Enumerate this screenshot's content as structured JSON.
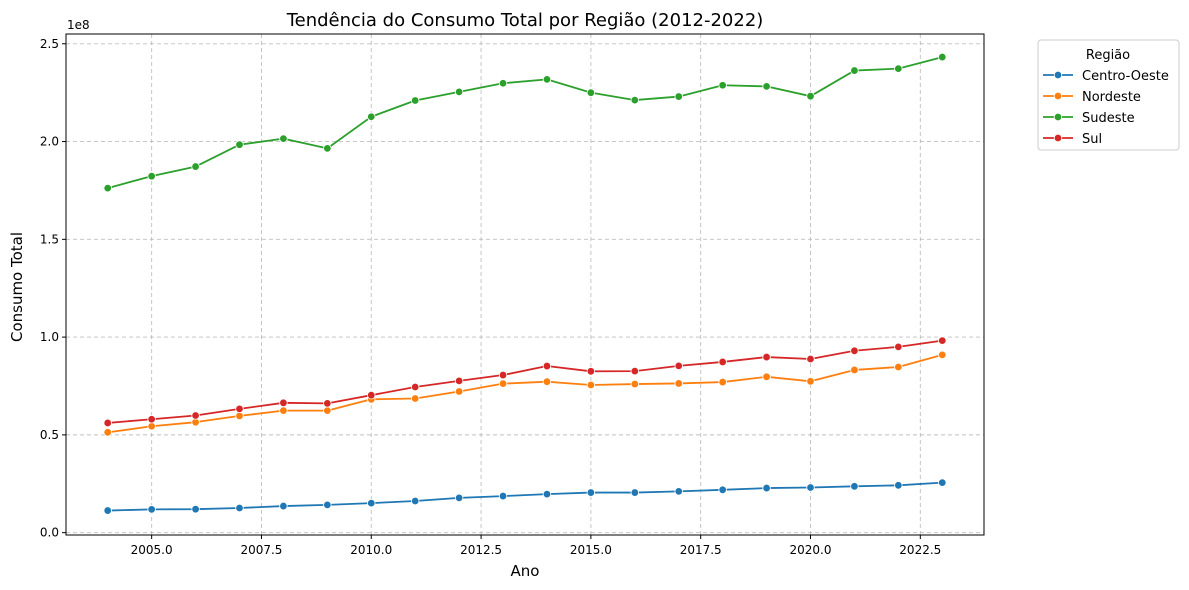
{
  "chart_data": {
    "type": "line",
    "title": "Tendência do Consumo Total por Região (2012-2022)",
    "xlabel": "Ano",
    "ylabel": "Consumo Total",
    "y_scale_label": "1e8",
    "xlim": [
      2003.05,
      2023.95
    ],
    "ylim": [
      -0.012,
      2.55
    ],
    "x_ticks": [
      2005.0,
      2007.5,
      2010.0,
      2012.5,
      2015.0,
      2017.5,
      2020.0,
      2022.5
    ],
    "x_tick_labels": [
      "2005.0",
      "2007.5",
      "2010.0",
      "2012.5",
      "2015.0",
      "2017.5",
      "2020.0",
      "2022.5"
    ],
    "y_ticks": [
      0.0,
      0.5,
      1.0,
      1.5,
      2.0,
      2.5
    ],
    "y_tick_labels": [
      "0.0",
      "0.5",
      "1.0",
      "1.5",
      "2.0",
      "2.5"
    ],
    "grid": true,
    "legend": {
      "title": "Região",
      "placement": "outside-top-right"
    },
    "x": [
      2004,
      2005,
      2006,
      2007,
      2008,
      2009,
      2010,
      2011,
      2012,
      2013,
      2014,
      2015,
      2016,
      2017,
      2018,
      2019,
      2020,
      2021,
      2022,
      2023
    ],
    "series": [
      {
        "name": "Centro-Oeste",
        "color": "#1f77b4",
        "values": [
          0.113,
          0.119,
          0.12,
          0.126,
          0.136,
          0.142,
          0.151,
          0.162,
          0.178,
          0.187,
          0.197,
          0.205,
          0.205,
          0.211,
          0.219,
          0.228,
          0.231,
          0.237,
          0.242,
          0.256
        ]
      },
      {
        "name": "Nordeste",
        "color": "#ff7f0e",
        "values": [
          0.513,
          0.544,
          0.565,
          0.597,
          0.624,
          0.624,
          0.682,
          0.686,
          0.722,
          0.762,
          0.772,
          0.755,
          0.76,
          0.763,
          0.77,
          0.797,
          0.774,
          0.832,
          0.847,
          0.909
        ]
      },
      {
        "name": "Sudeste",
        "color": "#2ca02c",
        "values": [
          1.762,
          1.823,
          1.872,
          1.984,
          2.015,
          1.965,
          2.127,
          2.21,
          2.254,
          2.298,
          2.318,
          2.25,
          2.212,
          2.23,
          2.288,
          2.282,
          2.232,
          2.363,
          2.373,
          2.432
        ]
      },
      {
        "name": "Sul",
        "color": "#d62728",
        "values": [
          0.561,
          0.58,
          0.599,
          0.633,
          0.664,
          0.661,
          0.703,
          0.745,
          0.776,
          0.806,
          0.852,
          0.825,
          0.826,
          0.853,
          0.873,
          0.898,
          0.888,
          0.93,
          0.95,
          0.982
        ]
      }
    ]
  }
}
